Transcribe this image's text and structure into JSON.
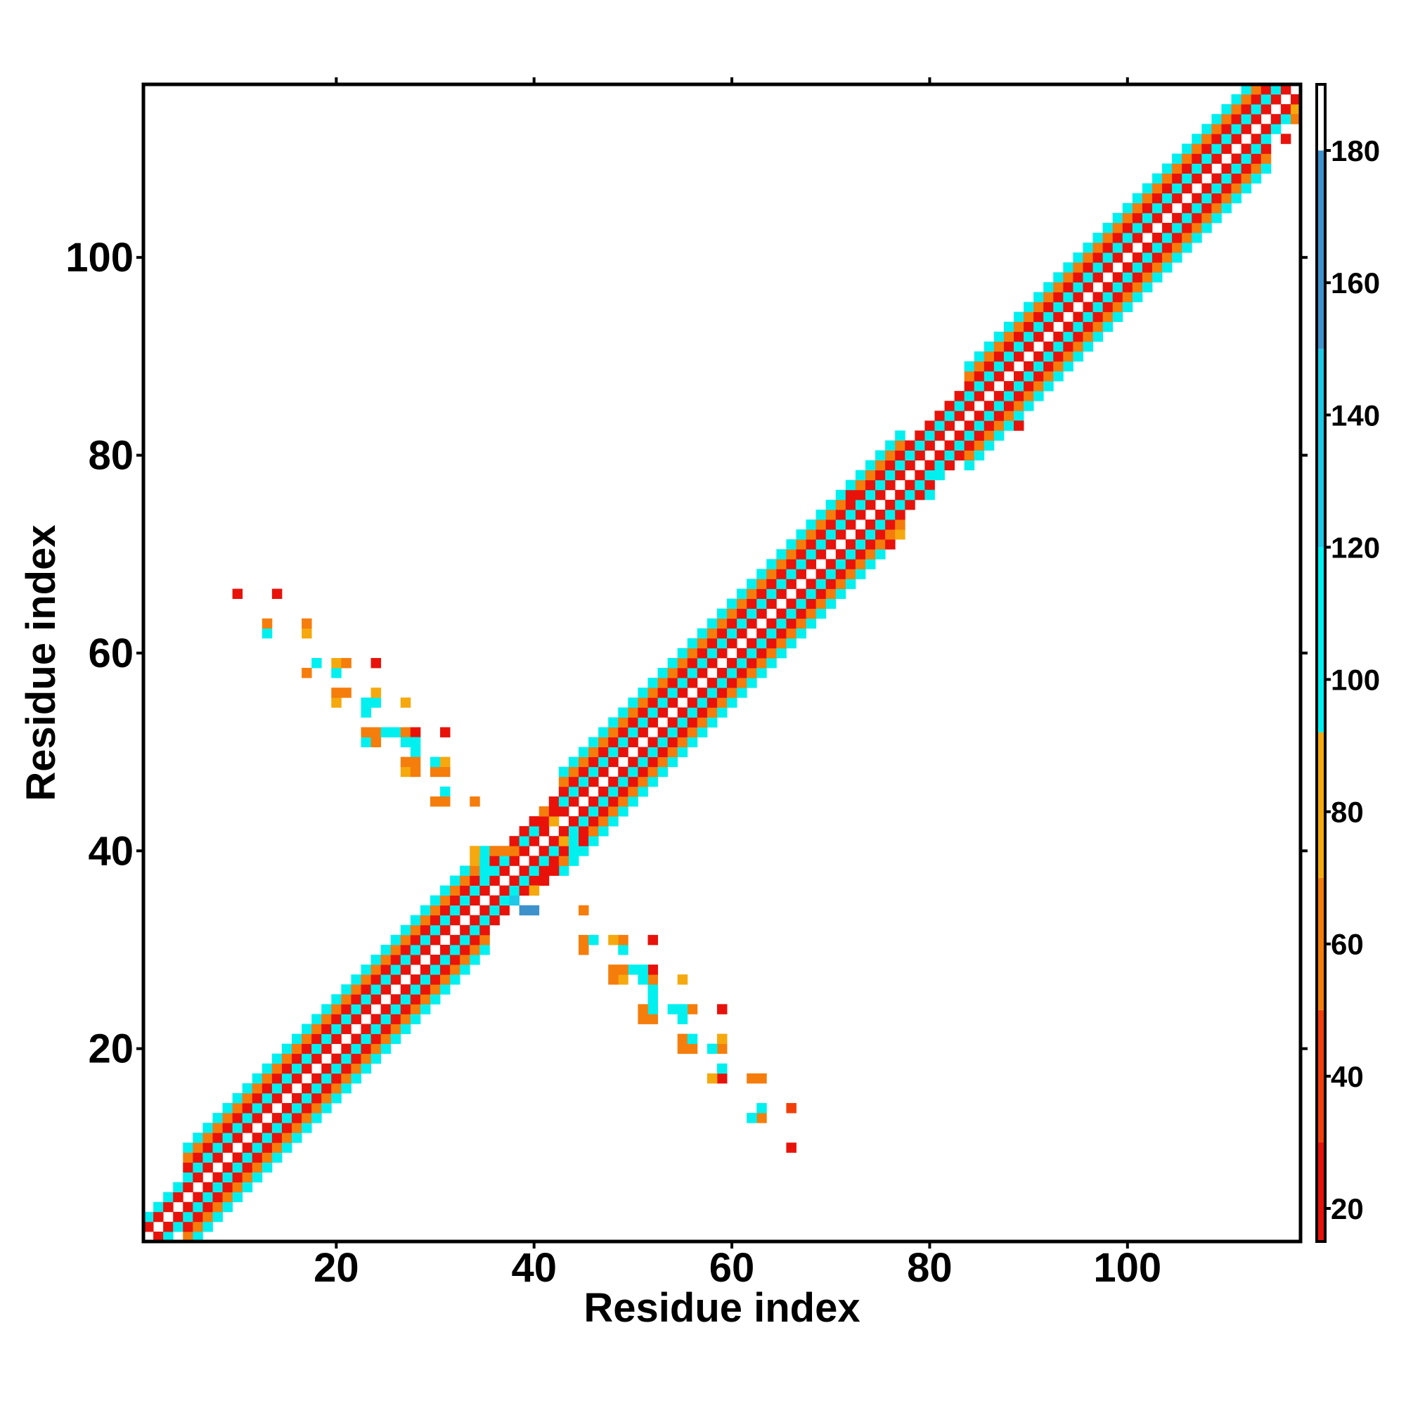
{
  "chart_data": {
    "type": "heatmap",
    "title": "",
    "xlabel": "Residue index",
    "ylabel": "Residue index",
    "xlim": [
      0.5,
      117.5
    ],
    "ylim": [
      0.5,
      117.5
    ],
    "xticks": [
      20,
      40,
      60,
      80,
      100
    ],
    "yticks": [
      20,
      40,
      60,
      80,
      100
    ],
    "colorbar": {
      "range": [
        15,
        190
      ],
      "ticks": [
        20,
        40,
        60,
        80,
        100,
        120,
        140,
        160,
        180
      ],
      "bands": [
        {
          "min": 15,
          "max": 30,
          "color": "#e8120a"
        },
        {
          "min": 30,
          "max": 50,
          "color": "#f23f0a"
        },
        {
          "min": 50,
          "max": 70,
          "color": "#f57d0c"
        },
        {
          "min": 70,
          "max": 92,
          "color": "#f5a90e"
        },
        {
          "min": 92,
          "max": 120,
          "color": "#00f0f0"
        },
        {
          "min": 120,
          "max": 150,
          "color": "#1fc8e6"
        },
        {
          "min": 150,
          "max": 180,
          "color": "#3d92cc"
        },
        {
          "min": 180,
          "max": 190,
          "color": "#ffffff"
        }
      ]
    },
    "band_pattern": {
      "description": "Near-diagonal contacts: cell value depends on |i-j|",
      "offset_values": {
        "1": 20,
        "2": 100,
        "3": 20,
        "4": 60,
        "5": 100
      }
    },
    "offset_extent": [
      {
        "from": 1,
        "to": 4,
        "max_offset": 2
      },
      {
        "from": 5,
        "to": 35,
        "max_offset": 5
      },
      {
        "from": 36,
        "to": 42,
        "max_offset": 3
      },
      {
        "from": 43,
        "to": 77,
        "max_offset": 5
      },
      {
        "from": 78,
        "to": 83,
        "max_offset": 3
      },
      {
        "from": 84,
        "to": 114,
        "max_offset": 5
      },
      {
        "from": 115,
        "to": 117,
        "max_offset": 2
      }
    ],
    "off_diagonal_contacts": [
      {
        "i": 66,
        "j": 10,
        "v": 25
      },
      {
        "i": 66,
        "j": 14,
        "v": 45
      },
      {
        "i": 63,
        "j": 13,
        "v": 65
      },
      {
        "i": 62,
        "j": 13,
        "v": 110
      },
      {
        "i": 63,
        "j": 14,
        "v": 110
      },
      {
        "i": 63,
        "j": 17,
        "v": 65
      },
      {
        "i": 62,
        "j": 17,
        "v": 65
      },
      {
        "i": 59,
        "j": 17,
        "v": 25
      },
      {
        "i": 58,
        "j": 17,
        "v": 80
      },
      {
        "i": 59,
        "j": 18,
        "v": 110
      },
      {
        "i": 59,
        "j": 20,
        "v": 65
      },
      {
        "i": 59,
        "j": 21,
        "v": 80
      },
      {
        "i": 58,
        "j": 20,
        "v": 110
      },
      {
        "i": 59,
        "j": 24,
        "v": 25
      },
      {
        "i": 56,
        "j": 20,
        "v": 65
      },
      {
        "i": 55,
        "j": 20,
        "v": 65
      },
      {
        "i": 55,
        "j": 21,
        "v": 65
      },
      {
        "i": 56,
        "j": 21,
        "v": 110
      },
      {
        "i": 55,
        "j": 23,
        "v": 110
      },
      {
        "i": 56,
        "j": 24,
        "v": 65
      },
      {
        "i": 55,
        "j": 24,
        "v": 110
      },
      {
        "i": 54,
        "j": 24,
        "v": 110
      },
      {
        "i": 55,
        "j": 27,
        "v": 80
      },
      {
        "i": 52,
        "j": 23,
        "v": 65
      },
      {
        "i": 51,
        "j": 23,
        "v": 65
      },
      {
        "i": 52,
        "j": 24,
        "v": 110
      },
      {
        "i": 51,
        "j": 24,
        "v": 65
      },
      {
        "i": 52,
        "j": 25,
        "v": 110
      },
      {
        "i": 52,
        "j": 26,
        "v": 110
      },
      {
        "i": 52,
        "j": 27,
        "v": 65
      },
      {
        "i": 52,
        "j": 28,
        "v": 25
      },
      {
        "i": 51,
        "j": 27,
        "v": 110
      },
      {
        "i": 51,
        "j": 28,
        "v": 110
      },
      {
        "i": 50,
        "j": 28,
        "v": 110
      },
      {
        "i": 52,
        "j": 31,
        "v": 25
      },
      {
        "i": 49,
        "j": 27,
        "v": 80
      },
      {
        "i": 48,
        "j": 27,
        "v": 65
      },
      {
        "i": 48,
        "j": 28,
        "v": 65
      },
      {
        "i": 49,
        "j": 28,
        "v": 65
      },
      {
        "i": 49,
        "j": 30,
        "v": 110
      },
      {
        "i": 49,
        "j": 31,
        "v": 65
      },
      {
        "i": 48,
        "j": 31,
        "v": 80
      },
      {
        "i": 45,
        "j": 30,
        "v": 65
      },
      {
        "i": 45,
        "j": 31,
        "v": 65
      },
      {
        "i": 46,
        "j": 31,
        "v": 110
      },
      {
        "i": 45,
        "j": 34,
        "v": 65
      },
      {
        "i": 35,
        "j": 38,
        "v": 110
      },
      {
        "i": 35,
        "j": 39,
        "v": 110
      },
      {
        "i": 35,
        "j": 40,
        "v": 110
      },
      {
        "i": 34,
        "j": 38,
        "v": 65
      },
      {
        "i": 34,
        "j": 39,
        "v": 80
      },
      {
        "i": 34,
        "j": 40,
        "v": 80
      },
      {
        "i": 36,
        "j": 40,
        "v": 65
      },
      {
        "i": 37,
        "j": 40,
        "v": 65
      },
      {
        "i": 38,
        "j": 40,
        "v": 65
      },
      {
        "i": 38,
        "j": 41,
        "v": 25
      },
      {
        "i": 40,
        "j": 34,
        "v": 160
      },
      {
        "i": 39,
        "j": 34,
        "v": 160
      },
      {
        "i": 38,
        "j": 35,
        "v": 130
      },
      {
        "i": 40,
        "j": 36,
        "v": 80
      },
      {
        "i": 41,
        "j": 37,
        "v": 25
      },
      {
        "i": 42,
        "j": 38,
        "v": 25
      },
      {
        "i": 44,
        "j": 40,
        "v": 110
      },
      {
        "i": 45,
        "j": 41,
        "v": 25
      },
      {
        "i": 44,
        "j": 41,
        "v": 110
      },
      {
        "i": 43,
        "j": 41,
        "v": 80
      },
      {
        "i": 42,
        "j": 43,
        "v": 80
      },
      {
        "i": 42,
        "j": 44,
        "v": 25
      },
      {
        "i": 41,
        "j": 43,
        "v": 25
      },
      {
        "i": 41,
        "j": 44,
        "v": 65
      },
      {
        "i": 76,
        "j": 71,
        "v": 25
      },
      {
        "i": 77,
        "j": 72,
        "v": 80
      },
      {
        "i": 72,
        "j": 76,
        "v": 25
      },
      {
        "i": 81,
        "j": 78,
        "v": 110
      },
      {
        "i": 80,
        "j": 76,
        "v": 110
      },
      {
        "i": 89,
        "j": 83,
        "v": 25
      },
      {
        "i": 90,
        "j": 85,
        "v": 110
      },
      {
        "i": 116,
        "j": 112,
        "v": 25
      },
      {
        "i": 117,
        "j": 114,
        "v": 65
      },
      {
        "i": 117,
        "j": 115,
        "v": 80
      },
      {
        "i": 10,
        "j": 66,
        "v": 25
      },
      {
        "i": 14,
        "j": 66,
        "v": 25
      },
      {
        "i": 13,
        "j": 62,
        "v": 110
      },
      {
        "i": 13,
        "j": 63,
        "v": 65
      },
      {
        "i": 17,
        "j": 62,
        "v": 80
      },
      {
        "i": 17,
        "j": 63,
        "v": 65
      },
      {
        "i": 17,
        "j": 58,
        "v": 65
      },
      {
        "i": 18,
        "j": 59,
        "v": 110
      },
      {
        "i": 20,
        "j": 58,
        "v": 110
      },
      {
        "i": 20,
        "j": 59,
        "v": 80
      },
      {
        "i": 21,
        "j": 59,
        "v": 65
      },
      {
        "i": 24,
        "j": 59,
        "v": 25
      },
      {
        "i": 20,
        "j": 55,
        "v": 80
      },
      {
        "i": 20,
        "j": 56,
        "v": 65
      },
      {
        "i": 21,
        "j": 56,
        "v": 65
      },
      {
        "i": 23,
        "j": 54,
        "v": 110
      },
      {
        "i": 23,
        "j": 55,
        "v": 110
      },
      {
        "i": 24,
        "j": 55,
        "v": 110
      },
      {
        "i": 24,
        "j": 56,
        "v": 80
      },
      {
        "i": 27,
        "j": 55,
        "v": 80
      },
      {
        "i": 23,
        "j": 51,
        "v": 110
      },
      {
        "i": 23,
        "j": 52,
        "v": 65
      },
      {
        "i": 24,
        "j": 52,
        "v": 65
      },
      {
        "i": 24,
        "j": 51,
        "v": 65
      },
      {
        "i": 25,
        "j": 52,
        "v": 110
      },
      {
        "i": 26,
        "j": 52,
        "v": 110
      },
      {
        "i": 27,
        "j": 52,
        "v": 65
      },
      {
        "i": 28,
        "j": 52,
        "v": 25
      },
      {
        "i": 27,
        "j": 51,
        "v": 110
      },
      {
        "i": 28,
        "j": 51,
        "v": 110
      },
      {
        "i": 28,
        "j": 50,
        "v": 110
      },
      {
        "i": 31,
        "j": 52,
        "v": 25
      },
      {
        "i": 27,
        "j": 48,
        "v": 80
      },
      {
        "i": 27,
        "j": 49,
        "v": 65
      },
      {
        "i": 28,
        "j": 48,
        "v": 65
      },
      {
        "i": 28,
        "j": 49,
        "v": 65
      },
      {
        "i": 30,
        "j": 48,
        "v": 65
      },
      {
        "i": 30,
        "j": 49,
        "v": 110
      },
      {
        "i": 31,
        "j": 48,
        "v": 65
      },
      {
        "i": 31,
        "j": 49,
        "v": 80
      },
      {
        "i": 31,
        "j": 46,
        "v": 110
      },
      {
        "i": 30,
        "j": 45,
        "v": 65
      },
      {
        "i": 31,
        "j": 45,
        "v": 65
      },
      {
        "i": 34,
        "j": 45,
        "v": 65
      }
    ]
  }
}
